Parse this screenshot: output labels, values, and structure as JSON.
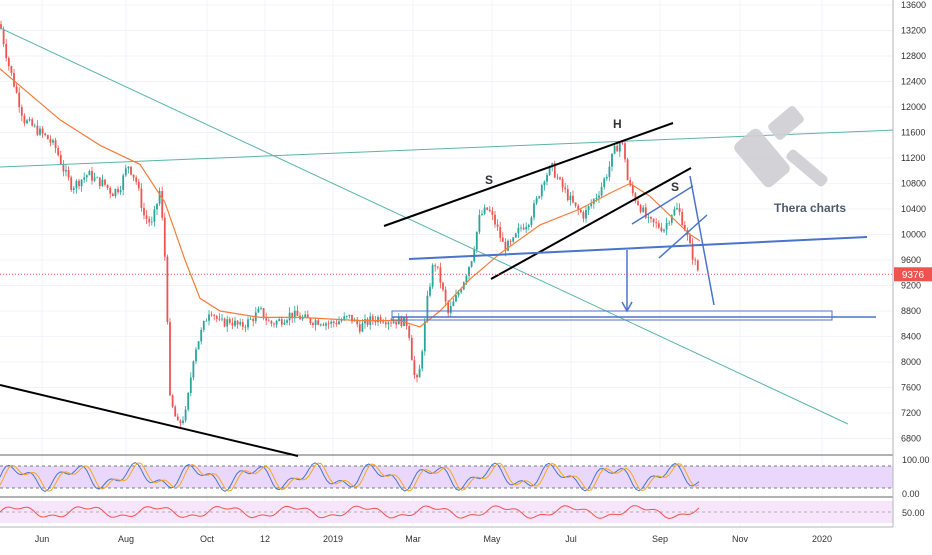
{
  "chart_data": {
    "type": "candlestick",
    "title": "",
    "watermark": "Thera charts",
    "colors": {
      "up": "#26a69a",
      "down": "#ef5350",
      "ma": "#f57c3a",
      "grid": "#f0f3fa",
      "trend_black": "#000000",
      "trend_blue": "#4a74c9",
      "trend_teal": "#59b5a8",
      "last_price_badge": "#ef5350",
      "stoch_k": "#4a74c9",
      "stoch_d": "#f5a623",
      "stoch_band": "#e9d8fb",
      "rsi_line": "#ef5350",
      "rsi_band": "#f7e6fb"
    },
    "price_axis": {
      "ticks": [
        "13600",
        "13200",
        "12800",
        "12400",
        "12000",
        "11600",
        "11200",
        "10800",
        "10400",
        "10000",
        "9600",
        "9200",
        "8800",
        "8400",
        "8000",
        "7600",
        "7200",
        "6800"
      ],
      "range": [
        6500,
        13600
      ],
      "last_price": "9376"
    },
    "time_axis": {
      "labels": [
        "Jun",
        "Aug",
        "Oct",
        "12",
        "2019",
        "Mar",
        "May",
        "Jul",
        "Sep",
        "Nov",
        "2020"
      ]
    },
    "annotations": {
      "pattern_labels": [
        "S",
        "H",
        "S"
      ]
    },
    "oscillator1": {
      "levels": [
        "100.00",
        "0.00"
      ]
    },
    "oscillator2": {
      "levels": [
        "50.00"
      ]
    },
    "price_series": [
      [
        0,
        13300
      ],
      [
        8,
        12700
      ],
      [
        16,
        12250
      ],
      [
        24,
        11800
      ],
      [
        32,
        11700
      ],
      [
        40,
        11600
      ],
      [
        48,
        11500
      ],
      [
        56,
        11350
      ],
      [
        64,
        11000
      ],
      [
        72,
        10750
      ],
      [
        80,
        10850
      ],
      [
        88,
        10950
      ],
      [
        96,
        10850
      ],
      [
        104,
        10800
      ],
      [
        112,
        10650
      ],
      [
        120,
        10750
      ],
      [
        128,
        11100
      ],
      [
        136,
        10850
      ],
      [
        144,
        10300
      ],
      [
        152,
        10150
      ],
      [
        160,
        10700
      ],
      [
        166,
        9400
      ],
      [
        170,
        7400
      ],
      [
        178,
        7000
      ],
      [
        186,
        7200
      ],
      [
        194,
        8150
      ],
      [
        202,
        8500
      ],
      [
        210,
        8850
      ],
      [
        220,
        8600
      ],
      [
        230,
        8650
      ],
      [
        240,
        8550
      ],
      [
        250,
        8650
      ],
      [
        260,
        8800
      ],
      [
        270,
        8600
      ],
      [
        280,
        8650
      ],
      [
        290,
        8750
      ],
      [
        300,
        8700
      ],
      [
        310,
        8650
      ],
      [
        320,
        8650
      ],
      [
        330,
        8600
      ],
      [
        340,
        8650
      ],
      [
        350,
        8700
      ],
      [
        360,
        8550
      ],
      [
        370,
        8650
      ],
      [
        380,
        8700
      ],
      [
        390,
        8650
      ],
      [
        400,
        8650
      ],
      [
        408,
        8600
      ],
      [
        414,
        7800
      ],
      [
        418,
        7650
      ],
      [
        422,
        8200
      ],
      [
        428,
        9050
      ],
      [
        434,
        9600
      ],
      [
        440,
        9300
      ],
      [
        448,
        8750
      ],
      [
        456,
        9000
      ],
      [
        464,
        9300
      ],
      [
        472,
        9650
      ],
      [
        480,
        10300
      ],
      [
        488,
        10400
      ],
      [
        496,
        10150
      ],
      [
        504,
        9800
      ],
      [
        512,
        9850
      ],
      [
        520,
        10100
      ],
      [
        528,
        10200
      ],
      [
        536,
        10500
      ],
      [
        544,
        10900
      ],
      [
        552,
        11050
      ],
      [
        560,
        10800
      ],
      [
        568,
        10600
      ],
      [
        576,
        10400
      ],
      [
        584,
        10300
      ],
      [
        592,
        10500
      ],
      [
        600,
        10700
      ],
      [
        608,
        11000
      ],
      [
        614,
        11300
      ],
      [
        620,
        11450
      ],
      [
        624,
        11350
      ],
      [
        628,
        10800
      ],
      [
        634,
        10600
      ],
      [
        640,
        10450
      ],
      [
        648,
        10200
      ],
      [
        656,
        10150
      ],
      [
        664,
        10100
      ],
      [
        672,
        10350
      ],
      [
        678,
        10400
      ],
      [
        684,
        10150
      ],
      [
        690,
        9800
      ],
      [
        696,
        9500
      ],
      [
        700,
        9376
      ]
    ],
    "moving_average": [
      [
        0,
        12600
      ],
      [
        30,
        12200
      ],
      [
        60,
        11800
      ],
      [
        100,
        11400
      ],
      [
        140,
        11100
      ],
      [
        165,
        10500
      ],
      [
        185,
        9600
      ],
      [
        200,
        9000
      ],
      [
        220,
        8800
      ],
      [
        260,
        8700
      ],
      [
        300,
        8700
      ],
      [
        360,
        8650
      ],
      [
        400,
        8650
      ],
      [
        420,
        8550
      ],
      [
        440,
        8800
      ],
      [
        470,
        9300
      ],
      [
        500,
        9700
      ],
      [
        540,
        10150
      ],
      [
        580,
        10400
      ],
      [
        610,
        10650
      ],
      [
        630,
        10800
      ],
      [
        650,
        10600
      ],
      [
        670,
        10300
      ],
      [
        690,
        10000
      ],
      [
        700,
        9900
      ]
    ]
  }
}
